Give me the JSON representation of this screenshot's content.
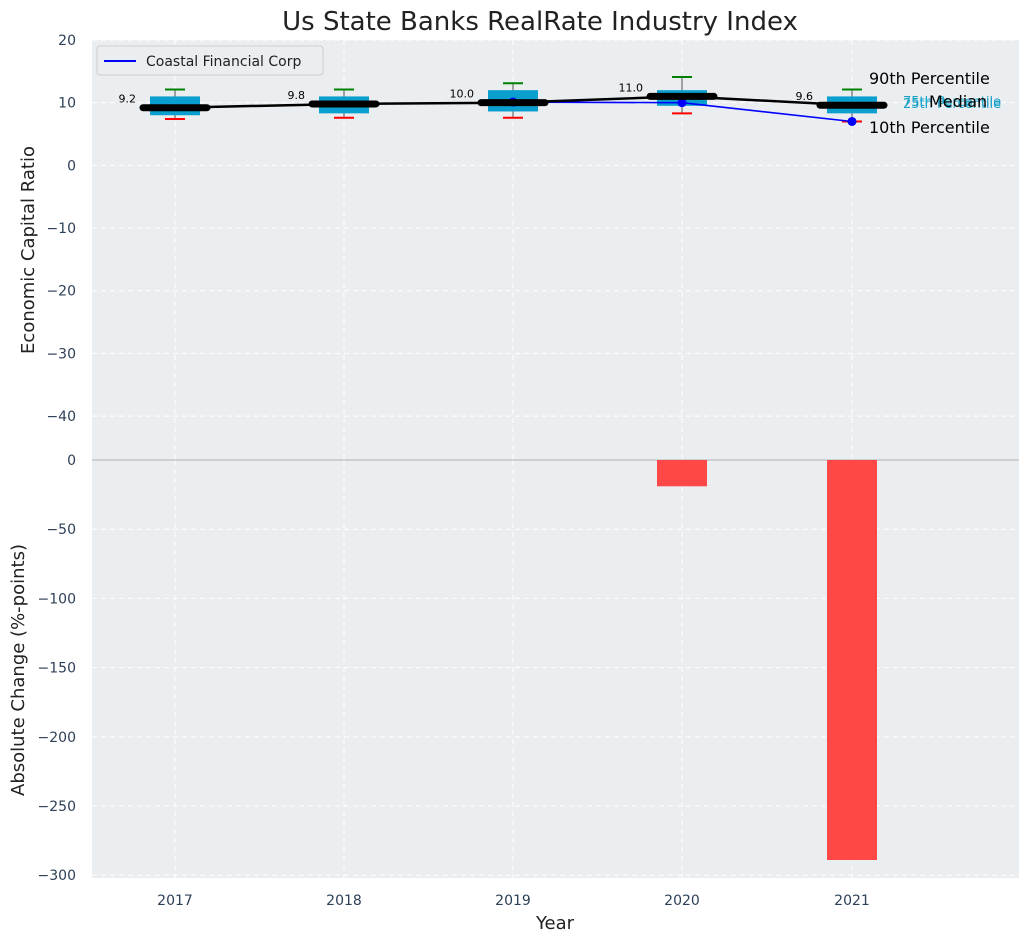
{
  "chart_data": [
    {
      "type": "box",
      "title": "Us State Banks RealRate Industry Index",
      "ylabel": "Economic Capital Ratio",
      "ylim": [
        -47,
        20
      ],
      "yticks": [
        20,
        10,
        0,
        -10,
        -20,
        -30,
        -40
      ],
      "ytick_labels": [
        "20",
        "10",
        "0",
        "−10",
        "−20",
        "−30",
        "−40"
      ],
      "categories": [
        "2017",
        "2018",
        "2019",
        "2020",
        "2021"
      ],
      "grid": true,
      "legend": {
        "placement": "top-left",
        "entries": [
          "Coastal Financial Corp"
        ]
      },
      "industry": {
        "p10": [
          7.4,
          7.6,
          7.6,
          8.3,
          7.0
        ],
        "p25": [
          8.0,
          8.3,
          8.6,
          9.5,
          8.3
        ],
        "median": [
          9.2,
          9.8,
          10.0,
          11.0,
          9.6
        ],
        "p75": [
          11.0,
          11.0,
          12.0,
          12.0,
          11.0
        ],
        "p90": [
          12.1,
          12.1,
          13.1,
          14.1,
          12.1
        ]
      },
      "median_labels": [
        "9.2",
        "9.8",
        "10.0",
        "11.0",
        "9.6"
      ],
      "series": [
        {
          "name": "Coastal Financial Corp",
          "values": [
            null,
            null,
            10.1,
            10.0,
            7.0
          ],
          "color": "#0000ff"
        }
      ],
      "annotations": {
        "p90": "90th Percentile",
        "p75": "75th Percentile",
        "median": "Median",
        "p25": "25th Percentile",
        "p10": "10th Percentile"
      },
      "colors": {
        "box": "#0b9fcf",
        "median_line": "#000000",
        "p90_whisker": "#008000",
        "p10_whisker": "#ff0000",
        "background": "#eaeef0"
      }
    },
    {
      "type": "bar",
      "ylabel": "Absolute Change (%-points)",
      "xlabel": "Year",
      "ylim": [
        -302,
        0
      ],
      "yticks": [
        0,
        -50,
        -100,
        -150,
        -200,
        -250,
        -300
      ],
      "ytick_labels": [
        "0",
        "−50",
        "−100",
        "−150",
        "−200",
        "−250",
        "−300"
      ],
      "categories": [
        "2017",
        "2018",
        "2019",
        "2020",
        "2021"
      ],
      "values": [
        0,
        0,
        0,
        -19,
        -289
      ],
      "colors": {
        "negative": "#ff3d3d"
      }
    }
  ]
}
